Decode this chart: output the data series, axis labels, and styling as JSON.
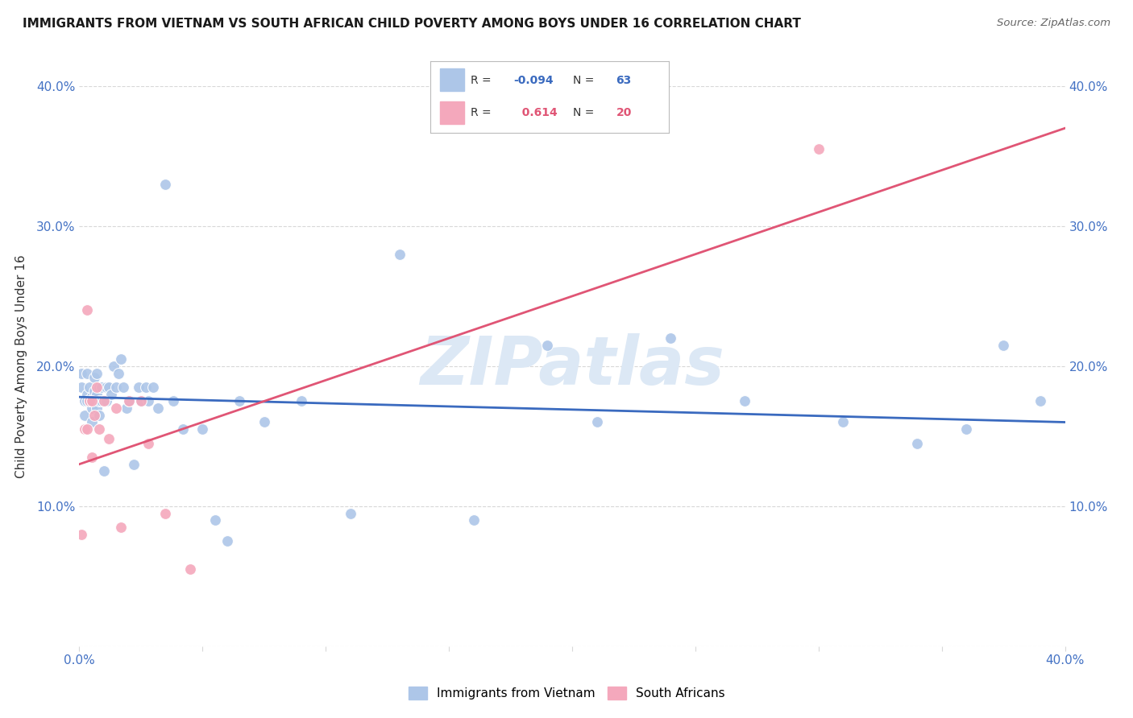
{
  "title": "IMMIGRANTS FROM VIETNAM VS SOUTH AFRICAN CHILD POVERTY AMONG BOYS UNDER 16 CORRELATION CHART",
  "source": "Source: ZipAtlas.com",
  "ylabel": "Child Poverty Among Boys Under 16",
  "xlim": [
    0.0,
    0.4
  ],
  "ylim": [
    0.0,
    0.4
  ],
  "blue_R": "-0.094",
  "blue_N": "63",
  "pink_R": "0.614",
  "pink_N": "20",
  "blue_color": "#adc6e8",
  "pink_color": "#f4a8bc",
  "blue_line_color": "#3a6abf",
  "pink_line_color": "#e05575",
  "watermark": "ZIPatlas",
  "blue_scatter_x": [
    0.001,
    0.001,
    0.002,
    0.002,
    0.003,
    0.003,
    0.003,
    0.004,
    0.004,
    0.005,
    0.005,
    0.005,
    0.006,
    0.006,
    0.006,
    0.007,
    0.007,
    0.007,
    0.008,
    0.008,
    0.008,
    0.009,
    0.009,
    0.01,
    0.011,
    0.011,
    0.012,
    0.013,
    0.014,
    0.015,
    0.016,
    0.017,
    0.018,
    0.019,
    0.02,
    0.022,
    0.024,
    0.025,
    0.027,
    0.028,
    0.03,
    0.032,
    0.035,
    0.038,
    0.042,
    0.05,
    0.055,
    0.06,
    0.065,
    0.075,
    0.09,
    0.11,
    0.13,
    0.16,
    0.19,
    0.21,
    0.24,
    0.27,
    0.31,
    0.34,
    0.36,
    0.375,
    0.39
  ],
  "blue_scatter_y": [
    0.185,
    0.195,
    0.175,
    0.165,
    0.18,
    0.175,
    0.195,
    0.175,
    0.185,
    0.17,
    0.16,
    0.178,
    0.182,
    0.192,
    0.175,
    0.18,
    0.17,
    0.195,
    0.185,
    0.165,
    0.175,
    0.185,
    0.175,
    0.125,
    0.175,
    0.185,
    0.185,
    0.18,
    0.2,
    0.185,
    0.195,
    0.205,
    0.185,
    0.17,
    0.175,
    0.13,
    0.185,
    0.175,
    0.185,
    0.175,
    0.185,
    0.17,
    0.33,
    0.175,
    0.155,
    0.155,
    0.09,
    0.075,
    0.175,
    0.16,
    0.175,
    0.095,
    0.28,
    0.09,
    0.215,
    0.16,
    0.22,
    0.175,
    0.16,
    0.145,
    0.155,
    0.215,
    0.175
  ],
  "pink_scatter_x": [
    0.001,
    0.002,
    0.003,
    0.003,
    0.004,
    0.005,
    0.005,
    0.006,
    0.007,
    0.008,
    0.01,
    0.012,
    0.015,
    0.017,
    0.02,
    0.025,
    0.028,
    0.035,
    0.045,
    0.3
  ],
  "pink_scatter_y": [
    0.08,
    0.155,
    0.155,
    0.24,
    0.175,
    0.175,
    0.135,
    0.165,
    0.185,
    0.155,
    0.175,
    0.148,
    0.17,
    0.085,
    0.175,
    0.175,
    0.145,
    0.095,
    0.055,
    0.355
  ],
  "blue_trend_x": [
    0.0,
    0.4
  ],
  "blue_trend_y": [
    0.178,
    0.16
  ],
  "pink_trend_x": [
    0.0,
    0.4
  ],
  "pink_trend_y": [
    0.13,
    0.37
  ],
  "background_color": "#ffffff",
  "grid_color": "#d8d8d8",
  "title_color": "#1a1a1a",
  "axis_color": "#4472c4",
  "watermark_color": "#dce8f5",
  "scatter_size": 100,
  "legend_R_color_blue": "#3a6abf",
  "legend_R_color_pink": "#e05575"
}
